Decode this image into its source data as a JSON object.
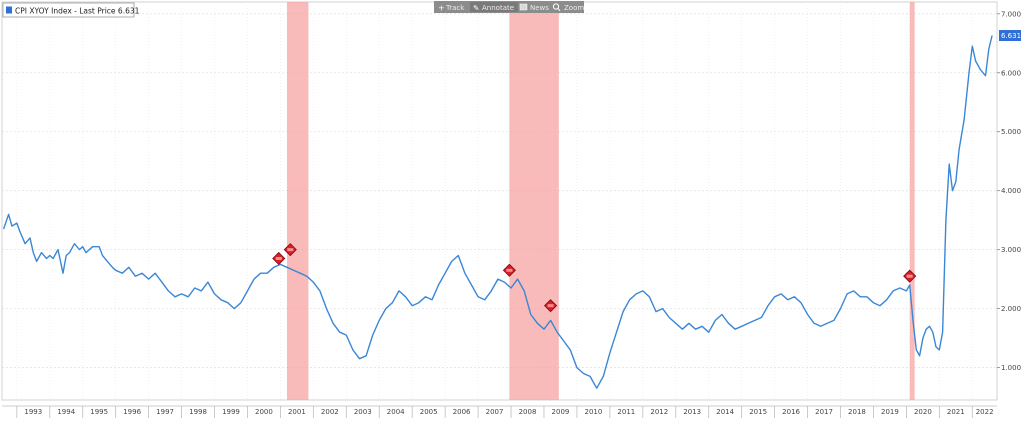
{
  "legend": {
    "label": "CPI XYOY Index - Last Price 6.631",
    "swatch_color": "#2f6fd6"
  },
  "toolbar": [
    {
      "label": "Track",
      "icon": "plus-icon"
    },
    {
      "label": "Annotate",
      "icon": "pencil-icon"
    },
    {
      "label": "News",
      "icon": "news-icon"
    },
    {
      "label": "Zoom",
      "icon": "magnifier-icon"
    }
  ],
  "last_price_tag": "6.631",
  "colors": {
    "line": "#3a87d6",
    "recession": "#f7a3a3",
    "marker": "#d61f2a",
    "tag": "#2f6fd6"
  },
  "chart_data": {
    "type": "line",
    "title": "CPI XYOY Index - Last Price 6.631",
    "xlabel": "",
    "ylabel": "",
    "xlim": [
      1992.55,
      2022.75
    ],
    "ylim": [
      0.45,
      7.2
    ],
    "grid": true,
    "legend_position": "top-left",
    "x_ticks": [
      "1993",
      "1994",
      "1995",
      "1996",
      "1997",
      "1998",
      "1999",
      "2000",
      "2001",
      "2002",
      "2003",
      "2004",
      "2005",
      "2006",
      "2007",
      "2008",
      "2009",
      "2010",
      "2011",
      "2012",
      "2013",
      "2014",
      "2015",
      "2016",
      "2017",
      "2018",
      "2019",
      "2020",
      "2021",
      "2022"
    ],
    "y_ticks": [
      "1.000",
      "2.000",
      "3.000",
      "4.000",
      "5.000",
      "6.000",
      "7.000"
    ],
    "recession_bands": [
      [
        2001.2,
        2001.85
      ],
      [
        2007.95,
        2009.45
      ],
      [
        2020.1,
        2020.25
      ]
    ],
    "markers": [
      {
        "x": 2000.95,
        "y": 2.85
      },
      {
        "x": 2001.3,
        "y": 3.0
      },
      {
        "x": 2007.95,
        "y": 2.65
      },
      {
        "x": 2009.2,
        "y": 2.05
      },
      {
        "x": 2020.1,
        "y": 2.55
      }
    ],
    "series": [
      {
        "x": [
          1992.6,
          1992.75,
          1992.85,
          1993.0,
          1993.1,
          1993.25,
          1993.4,
          1993.5,
          1993.6,
          1993.75,
          1993.9,
          1994.0,
          1994.1,
          1994.25,
          1994.4,
          1994.5,
          1994.6,
          1994.75,
          1994.9,
          1995.0,
          1995.1,
          1995.3,
          1995.5,
          1995.6,
          1995.75,
          1995.9,
          1996.0,
          1996.2,
          1996.4,
          1996.6,
          1996.8,
          1997.0,
          1997.2,
          1997.4,
          1997.6,
          1997.8,
          1998.0,
          1998.2,
          1998.4,
          1998.6,
          1998.8,
          1999.0,
          1999.2,
          1999.4,
          1999.6,
          1999.8,
          2000.0,
          2000.2,
          2000.4,
          2000.6,
          2000.8,
          2001.0,
          2001.2,
          2001.4,
          2001.6,
          2001.8,
          2002.0,
          2002.2,
          2002.4,
          2002.6,
          2002.8,
          2003.0,
          2003.2,
          2003.4,
          2003.6,
          2003.8,
          2004.0,
          2004.2,
          2004.4,
          2004.6,
          2004.8,
          2005.0,
          2005.2,
          2005.4,
          2005.6,
          2005.8,
          2006.0,
          2006.2,
          2006.4,
          2006.6,
          2006.8,
          2007.0,
          2007.2,
          2007.4,
          2007.6,
          2007.8,
          2008.0,
          2008.2,
          2008.4,
          2008.6,
          2008.8,
          2009.0,
          2009.2,
          2009.4,
          2009.6,
          2009.8,
          2010.0,
          2010.2,
          2010.4,
          2010.6,
          2010.8,
          2011.0,
          2011.2,
          2011.4,
          2011.6,
          2011.8,
          2012.0,
          2012.2,
          2012.4,
          2012.6,
          2012.8,
          2013.0,
          2013.2,
          2013.4,
          2013.6,
          2013.8,
          2014.0,
          2014.2,
          2014.4,
          2014.6,
          2014.8,
          2015.0,
          2015.2,
          2015.4,
          2015.6,
          2015.8,
          2016.0,
          2016.2,
          2016.4,
          2016.6,
          2016.8,
          2017.0,
          2017.2,
          2017.4,
          2017.6,
          2017.8,
          2018.0,
          2018.2,
          2018.4,
          2018.6,
          2018.8,
          2019.0,
          2019.2,
          2019.4,
          2019.6,
          2019.8,
          2020.0,
          2020.1,
          2020.2,
          2020.3,
          2020.4,
          2020.5,
          2020.6,
          2020.7,
          2020.8,
          2020.9,
          2021.0,
          2021.1,
          2021.2,
          2021.3,
          2021.4,
          2021.5,
          2021.6,
          2021.75,
          2021.9,
          2022.0,
          2022.1,
          2022.25,
          2022.4,
          2022.5,
          2022.6
        ],
        "y": [
          3.35,
          3.6,
          3.4,
          3.45,
          3.3,
          3.1,
          3.2,
          2.95,
          2.8,
          2.95,
          2.85,
          2.9,
          2.85,
          3.0,
          2.6,
          2.9,
          2.95,
          3.1,
          3.0,
          3.05,
          2.95,
          3.05,
          3.05,
          2.9,
          2.8,
          2.7,
          2.65,
          2.6,
          2.7,
          2.55,
          2.6,
          2.5,
          2.6,
          2.45,
          2.3,
          2.2,
          2.25,
          2.2,
          2.35,
          2.3,
          2.45,
          2.25,
          2.15,
          2.1,
          2.0,
          2.1,
          2.3,
          2.5,
          2.6,
          2.6,
          2.7,
          2.75,
          2.7,
          2.65,
          2.6,
          2.55,
          2.45,
          2.3,
          2.0,
          1.75,
          1.6,
          1.55,
          1.3,
          1.15,
          1.2,
          1.55,
          1.8,
          2.0,
          2.1,
          2.3,
          2.2,
          2.05,
          2.1,
          2.2,
          2.15,
          2.4,
          2.6,
          2.8,
          2.9,
          2.6,
          2.4,
          2.2,
          2.15,
          2.3,
          2.5,
          2.45,
          2.35,
          2.5,
          2.3,
          1.9,
          1.75,
          1.65,
          1.8,
          1.6,
          1.45,
          1.3,
          1.0,
          0.9,
          0.85,
          0.65,
          0.85,
          1.25,
          1.6,
          1.95,
          2.15,
          2.25,
          2.3,
          2.2,
          1.95,
          2.0,
          1.85,
          1.75,
          1.65,
          1.75,
          1.65,
          1.7,
          1.6,
          1.8,
          1.9,
          1.75,
          1.65,
          1.7,
          1.75,
          1.8,
          1.85,
          2.05,
          2.2,
          2.25,
          2.15,
          2.2,
          2.1,
          1.9,
          1.75,
          1.7,
          1.75,
          1.8,
          2.0,
          2.25,
          2.3,
          2.2,
          2.2,
          2.1,
          2.05,
          2.15,
          2.3,
          2.35,
          2.3,
          2.4,
          1.8,
          1.3,
          1.2,
          1.5,
          1.65,
          1.7,
          1.6,
          1.35,
          1.3,
          1.6,
          3.5,
          4.45,
          4.0,
          4.15,
          4.7,
          5.2,
          6.0,
          6.45,
          6.2,
          6.05,
          5.95,
          6.4,
          6.631
        ]
      }
    ]
  }
}
